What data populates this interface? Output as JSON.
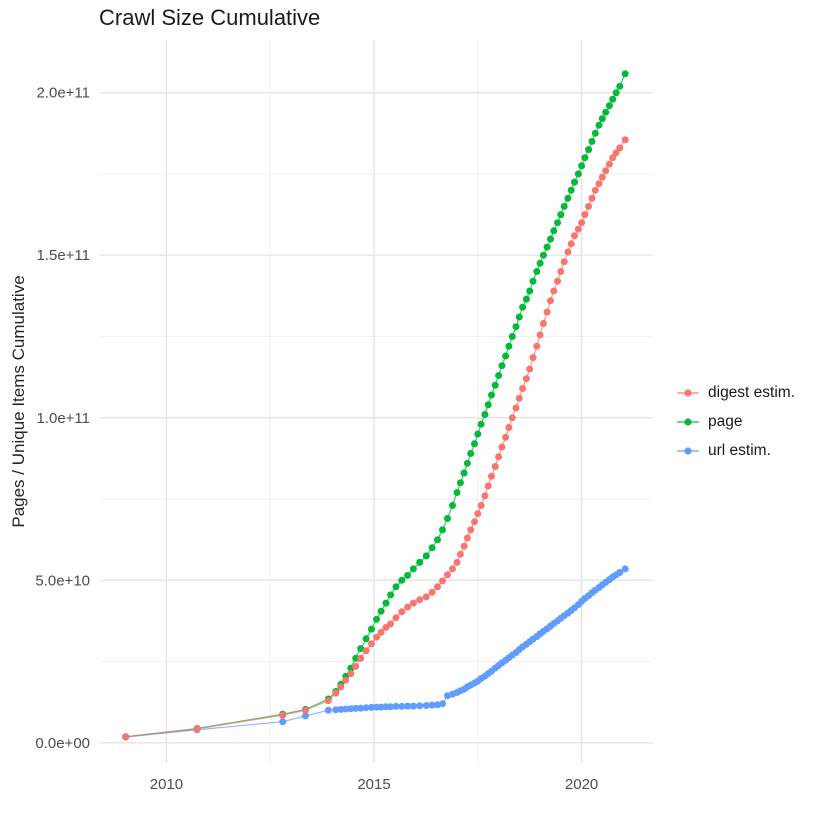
{
  "title": "Crawl Size Cumulative",
  "y_axis_title": "Pages / Unique Items Cumulative",
  "legend": {
    "position": "right",
    "items": [
      {
        "label": "digest estim.",
        "color": "#F8766D"
      },
      {
        "label": "page",
        "color": "#00BA38"
      },
      {
        "label": "url estim.",
        "color": "#619CFF"
      }
    ]
  },
  "colors": {
    "background": "#ffffff",
    "grid_major": "#e4e4e4",
    "grid_minor": "#efefef",
    "tick_label": "#4d4d4d",
    "axis_title": "#262626",
    "title": "#1a1a1a"
  },
  "chart_data": {
    "type": "scatter",
    "title": "Crawl Size Cumulative",
    "xlabel": "",
    "ylabel": "Pages / Unique Items Cumulative",
    "grid": true,
    "legend_position": "right",
    "value_scale": 1000000000.0,
    "xlim": [
      2008.4,
      2021.72
    ],
    "ylim_e9": [
      -6.2,
      216.2
    ],
    "x_major_ticks": [
      2010,
      2015,
      2020
    ],
    "x_major_labels": [
      "2010",
      "2015",
      "2020"
    ],
    "x_minor_ticks": [
      2012.5,
      2017.5
    ],
    "y_major_ticks_e9": [
      0,
      50,
      100,
      150,
      200
    ],
    "y_major_labels": [
      "0.0e+00",
      "5.0e+10",
      "1.0e+11",
      "1.5e+11",
      "2.0e+11"
    ],
    "y_minor_ticks_e9": [
      25,
      75,
      125,
      175
    ],
    "x": [
      2009.02,
      2010.74,
      2012.8,
      2013.35,
      2013.9,
      2014.08,
      2014.2,
      2014.32,
      2014.44,
      2014.56,
      2014.68,
      2014.81,
      2014.94,
      2015.06,
      2015.17,
      2015.29,
      2015.4,
      2015.53,
      2015.67,
      2015.81,
      2015.95,
      2016.1,
      2016.26,
      2016.4,
      2016.53,
      2016.65,
      2016.77,
      2016.89,
      2017.0,
      2017.08,
      2017.17,
      2017.25,
      2017.33,
      2017.42,
      2017.5,
      2017.58,
      2017.67,
      2017.75,
      2017.83,
      2017.92,
      2018.0,
      2018.08,
      2018.17,
      2018.25,
      2018.33,
      2018.42,
      2018.5,
      2018.58,
      2018.67,
      2018.75,
      2018.83,
      2018.92,
      2019.0,
      2019.08,
      2019.17,
      2019.25,
      2019.33,
      2019.42,
      2019.5,
      2019.58,
      2019.67,
      2019.75,
      2019.83,
      2019.92,
      2020.0,
      2020.08,
      2020.17,
      2020.25,
      2020.33,
      2020.42,
      2020.5,
      2020.58,
      2020.67,
      2020.75,
      2020.83,
      2020.92,
      2021.05
    ],
    "series": [
      {
        "name": "url estim.",
        "color": "#619CFF",
        "values_e9": [
          1.8,
          4.0,
          6.5,
          8.3,
          10.0,
          10.2,
          10.3,
          10.4,
          10.5,
          10.6,
          10.7,
          10.8,
          10.9,
          11.0,
          11.0,
          11.1,
          11.1,
          11.2,
          11.2,
          11.3,
          11.3,
          11.4,
          11.5,
          11.6,
          11.7,
          12.0,
          14.5,
          15.0,
          15.5,
          16.0,
          16.5,
          17.2,
          17.8,
          18.4,
          19.0,
          19.8,
          20.5,
          21.3,
          22.0,
          23.0,
          23.8,
          24.6,
          25.4,
          26.2,
          27.0,
          27.8,
          28.7,
          29.5,
          30.3,
          31.1,
          31.9,
          32.7,
          33.5,
          34.3,
          35.1,
          35.9,
          36.7,
          37.5,
          38.3,
          39.1,
          39.9,
          40.7,
          41.5,
          42.5,
          43.5,
          44.4,
          45.3,
          46.2,
          47.0,
          47.8,
          48.6,
          49.4,
          50.2,
          51.0,
          51.7,
          52.4,
          53.5
        ]
      },
      {
        "name": "page",
        "color": "#00BA38",
        "values_e9": [
          1.9,
          4.4,
          8.8,
          10.3,
          13.5,
          15.8,
          18.0,
          20.5,
          23.0,
          26.0,
          29.0,
          32.0,
          35.0,
          38.0,
          40.5,
          43.0,
          45.5,
          48.0,
          50.0,
          51.5,
          53.5,
          55.5,
          57.5,
          60.0,
          62.5,
          65.5,
          69.0,
          73.0,
          77.0,
          80.0,
          83.0,
          86.0,
          89.0,
          92.0,
          95.0,
          98.0,
          101.0,
          104.0,
          107.0,
          110.0,
          113.0,
          116.0,
          119.0,
          122.0,
          125.0,
          128.0,
          131.0,
          134.0,
          136.5,
          139.0,
          142.0,
          145.0,
          147.5,
          150.0,
          152.5,
          155.0,
          157.5,
          160.0,
          162.5,
          165.0,
          167.5,
          170.0,
          172.5,
          175.0,
          177.5,
          180.0,
          182.5,
          185.0,
          187.5,
          190.0,
          192.0,
          194.0,
          196.0,
          198.0,
          200.0,
          202.0,
          205.8
        ]
      },
      {
        "name": "digest estim.",
        "color": "#F8766D",
        "values_e9": [
          1.85,
          4.3,
          8.5,
          10.0,
          13.0,
          15.3,
          17.2,
          19.3,
          21.3,
          23.5,
          26.0,
          28.3,
          30.5,
          32.5,
          34.0,
          35.5,
          36.6,
          38.5,
          40.3,
          41.8,
          43.0,
          44.0,
          44.9,
          46.3,
          48.0,
          49.8,
          51.7,
          53.5,
          55.5,
          58.0,
          60.5,
          63.0,
          65.5,
          68.0,
          70.5,
          73.0,
          76.0,
          79.0,
          82.0,
          85.0,
          88.0,
          91.0,
          94.0,
          97.0,
          100.0,
          103.0,
          106.0,
          109.0,
          112.0,
          115.0,
          118.5,
          122.0,
          125.5,
          129.0,
          132.5,
          136.0,
          139.0,
          142.0,
          145.0,
          148.0,
          151.0,
          153.5,
          156.0,
          158.0,
          160.0,
          162.5,
          165.0,
          167.5,
          170.0,
          172.0,
          174.0,
          176.0,
          178.0,
          180.0,
          181.5,
          183.0,
          185.5
        ]
      }
    ]
  }
}
